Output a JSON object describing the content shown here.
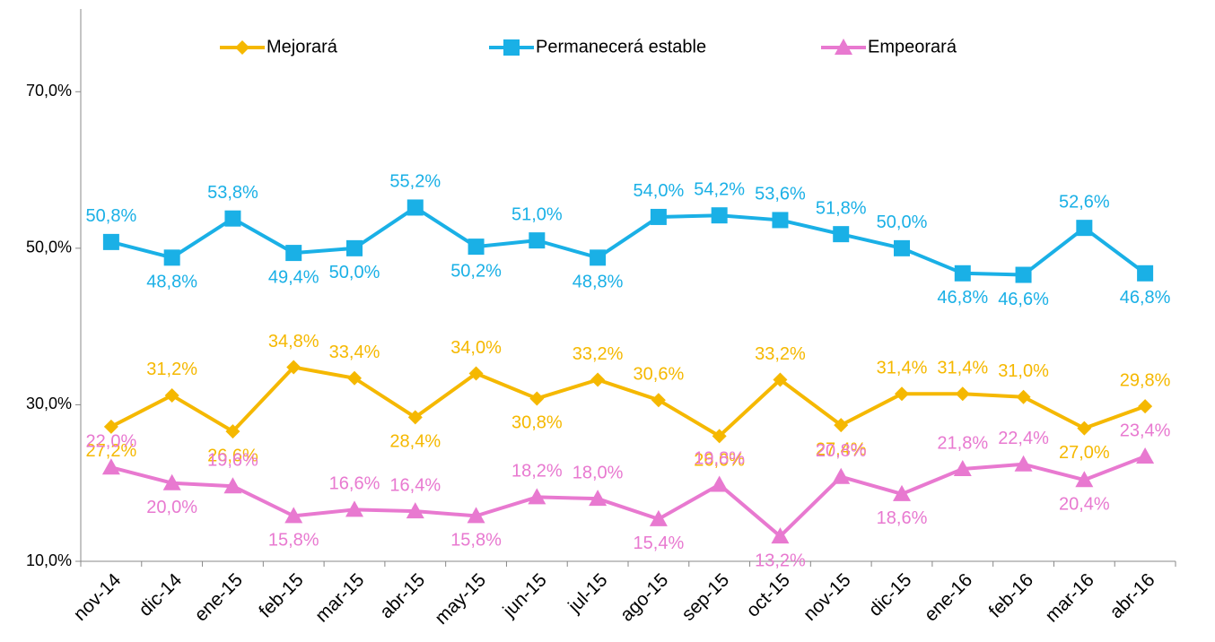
{
  "chart_data": {
    "type": "line",
    "categories": [
      "nov-14",
      "dic-14",
      "ene-15",
      "feb-15",
      "mar-15",
      "abr-15",
      "may-15",
      "jun-15",
      "jul-15",
      "ago-15",
      "sep-15",
      "oct-15",
      "nov-15",
      "dic-15",
      "ene-16",
      "feb-16",
      "mar-16",
      "abr-16"
    ],
    "series": [
      {
        "name": "Mejorará",
        "color": "#f5b800",
        "marker": "diamond",
        "values": [
          27.2,
          31.2,
          26.6,
          34.8,
          33.4,
          28.4,
          34.0,
          30.8,
          33.2,
          30.6,
          26.0,
          33.2,
          27.4,
          31.4,
          31.4,
          31.0,
          27.0,
          29.8
        ],
        "value_labels": [
          "27,2%",
          "31,2%",
          "26,6%",
          "34,8%",
          "33,4%",
          "28,4%",
          "34,0%",
          "30,8%",
          "33,2%",
          "30,6%",
          "26,0%",
          "33,2%",
          "27,4%",
          "31,4%",
          "31,4%",
          "31,0%",
          "27,0%",
          "29,8%"
        ]
      },
      {
        "name": "Permanecerá estable",
        "color": "#1ab0e6",
        "marker": "square",
        "values": [
          50.8,
          48.8,
          53.8,
          49.4,
          50.0,
          55.2,
          50.2,
          51.0,
          48.8,
          54.0,
          54.2,
          53.6,
          51.8,
          50.0,
          46.8,
          46.6,
          52.6,
          46.8
        ],
        "value_labels": [
          "50,8%",
          "48,8%",
          "53,8%",
          "49,4%",
          "50,0%",
          "55,2%",
          "50,2%",
          "51,0%",
          "48,8%",
          "54,0%",
          "54,2%",
          "53,6%",
          "51,8%",
          "50,0%",
          "46,8%",
          "46,6%",
          "52,6%",
          "46,8%"
        ]
      },
      {
        "name": "Empeorará",
        "color": "#e879d0",
        "marker": "triangle",
        "values": [
          22.0,
          20.0,
          19.6,
          15.8,
          16.6,
          16.4,
          15.8,
          18.2,
          18.0,
          15.4,
          19.8,
          13.2,
          20.8,
          18.6,
          21.8,
          22.4,
          20.4,
          23.4
        ],
        "value_labels": [
          "22,0%",
          "20,0%",
          "19,6%",
          "15,8%",
          "16,6%",
          "16,4%",
          "15,8%",
          "18,2%",
          "18,0%",
          "15,4%",
          "19,8%",
          "13,2%",
          "20,8%",
          "18,6%",
          "21,8%",
          "22,4%",
          "20,4%",
          "23,4%"
        ]
      }
    ],
    "ylim": [
      10,
      80
    ],
    "yticks": [
      {
        "value": 10,
        "label": "10,0%"
      },
      {
        "value": 30,
        "label": "30,0%"
      },
      {
        "value": 50,
        "label": "50,0%"
      },
      {
        "value": 70,
        "label": "70,0%"
      }
    ],
    "legend": "top"
  }
}
